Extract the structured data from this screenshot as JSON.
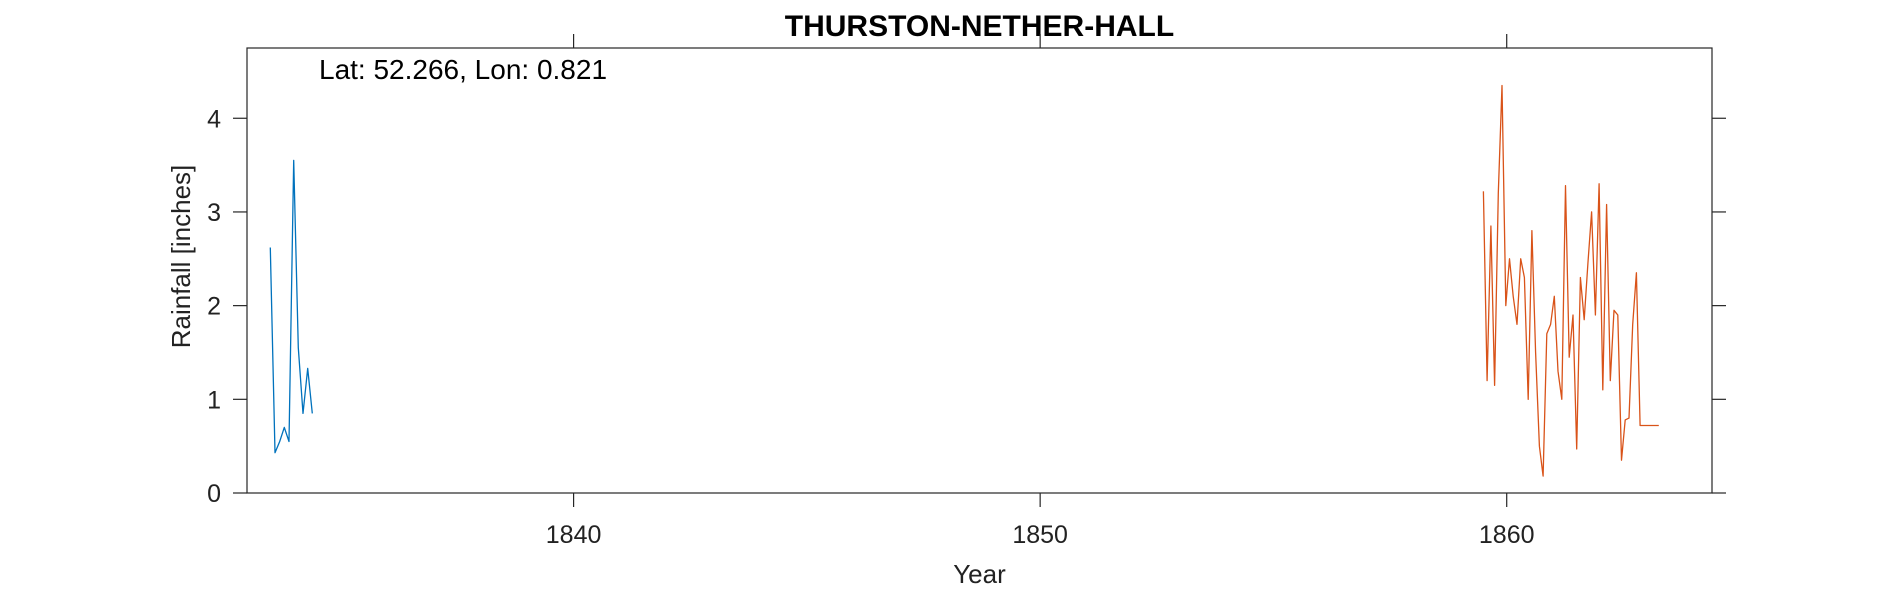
{
  "chart_data": {
    "type": "line",
    "title": "THURSTON-NETHER-HALL",
    "xlabel": "Year",
    "ylabel": "Rainfall [inches]",
    "annotation": "Lat: 52.266, Lon: 0.821",
    "xlim": [
      1833,
      1864.4
    ],
    "ylim": [
      0,
      4.75
    ],
    "xticks": [
      1840,
      1850,
      1860
    ],
    "yticks": [
      0,
      1,
      2,
      3,
      4
    ],
    "xtick_labels": [
      "1840",
      "1850",
      "1860"
    ],
    "ytick_labels": [
      "0",
      "1",
      "2",
      "3",
      "4"
    ],
    "grid": false,
    "colors": {
      "series1": "#0072BD",
      "series2": "#D95319",
      "axes": "#262626"
    },
    "series": [
      {
        "x": [
          1833.5,
          1833.6,
          1833.7,
          1833.8,
          1833.9,
          1834.0,
          1834.1,
          1834.2,
          1834.3,
          1834.4
        ],
        "y": [
          2.62,
          0.43,
          0.55,
          0.7,
          0.55,
          3.55,
          1.55,
          0.85,
          1.33,
          0.85
        ]
      },
      {
        "x": [
          1859.5,
          1859.58,
          1859.66,
          1859.74,
          1859.82,
          1859.9,
          1859.98,
          1860.06,
          1860.14,
          1860.22,
          1860.3,
          1860.38,
          1860.46,
          1860.54,
          1860.62,
          1860.7,
          1860.78,
          1860.86,
          1860.94,
          1861.02,
          1861.1,
          1861.18,
          1861.26,
          1861.34,
          1861.42,
          1861.5,
          1861.58,
          1861.66,
          1861.74,
          1861.82,
          1861.9,
          1861.98,
          1862.06,
          1862.14,
          1862.22,
          1862.3,
          1862.38,
          1862.46,
          1862.54,
          1862.62,
          1862.7,
          1862.78,
          1862.86,
          1862.94,
          1863.02,
          1863.1,
          1863.18,
          1863.26
        ],
        "y": [
          3.22,
          1.2,
          2.85,
          1.15,
          3.2,
          4.35,
          2.0,
          2.5,
          2.1,
          1.8,
          2.5,
          2.3,
          1.0,
          2.8,
          1.5,
          0.5,
          0.18,
          1.7,
          1.8,
          2.1,
          1.3,
          1.0,
          3.28,
          1.45,
          1.9,
          0.47,
          2.3,
          1.85,
          2.45,
          3.0,
          1.9,
          3.3,
          1.1,
          3.08,
          1.2,
          1.95,
          1.9,
          0.35,
          0.78,
          0.8,
          1.8,
          2.35,
          0.72,
          0.72,
          0.72,
          0.72,
          0.72,
          0.72
        ]
      }
    ]
  }
}
